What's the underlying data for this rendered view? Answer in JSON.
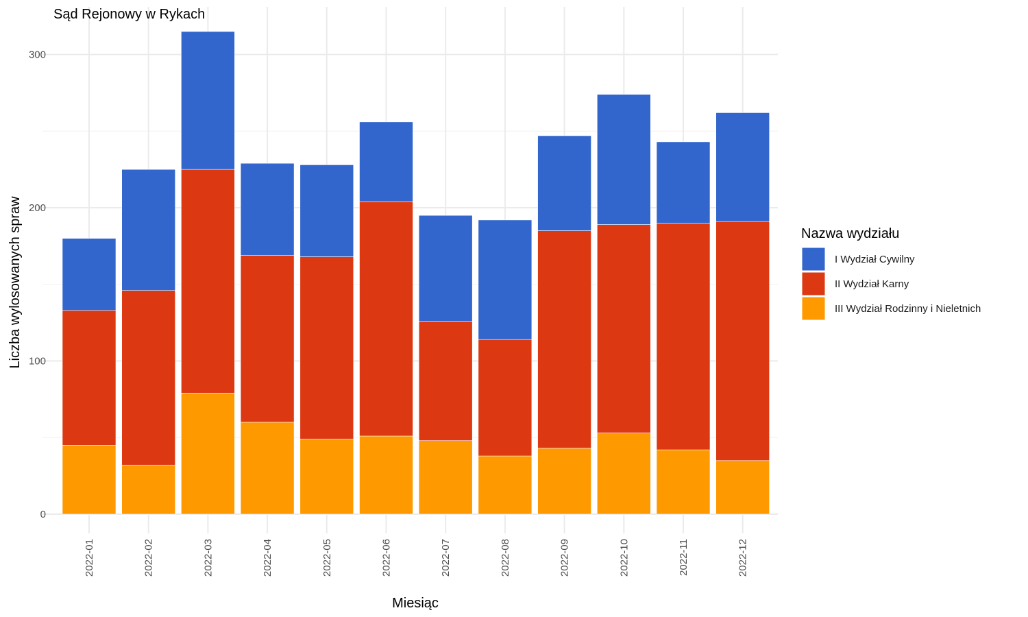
{
  "chart_data": {
    "type": "bar",
    "stacked": true,
    "title": "Sąd Rejonowy w Rykach",
    "xlabel": "Miesiąc",
    "ylabel": "Liczba wylosowanych spraw",
    "categories": [
      "2022-01",
      "2022-02",
      "2022-03",
      "2022-04",
      "2022-05",
      "2022-06",
      "2022-07",
      "2022-08",
      "2022-09",
      "2022-10",
      "2022-11",
      "2022-12"
    ],
    "ylim": [
      0,
      315
    ],
    "yticks": [
      0,
      100,
      200,
      300
    ],
    "grid": true,
    "legend_position": "right",
    "legend_title": "Nazwa wydziału",
    "series": [
      {
        "name": "III Wydział Rodzinny i Nieletnich",
        "color": "#FF9900",
        "values": [
          45,
          32,
          79,
          60,
          49,
          51,
          48,
          38,
          43,
          53,
          42,
          35
        ]
      },
      {
        "name": "II Wydział Karny",
        "color": "#DC3912",
        "values": [
          88,
          114,
          146,
          109,
          119,
          153,
          78,
          76,
          142,
          136,
          148,
          156
        ]
      },
      {
        "name": "I Wydział Cywilny",
        "color": "#3366CC",
        "values": [
          47,
          79,
          90,
          60,
          60,
          52,
          69,
          78,
          62,
          85,
          53,
          71
        ]
      }
    ],
    "legend_order": [
      "I Wydział Cywilny",
      "II Wydział Karny",
      "III Wydział Rodzinny i Nieletnich"
    ]
  }
}
